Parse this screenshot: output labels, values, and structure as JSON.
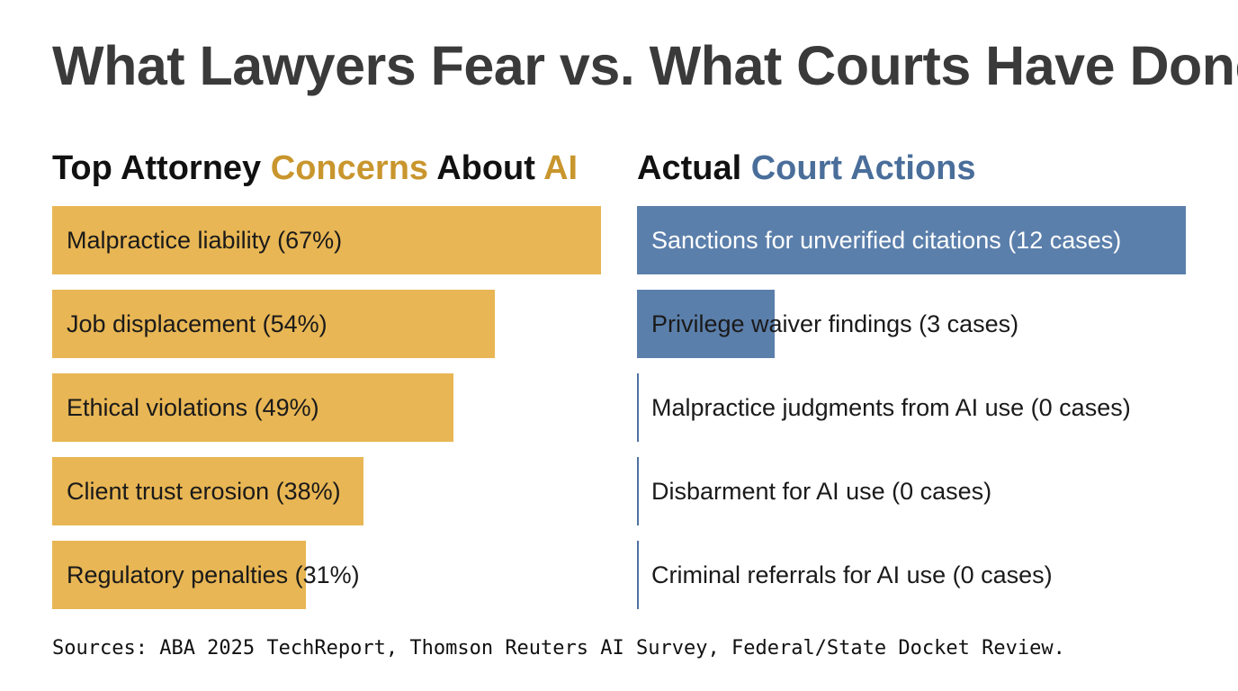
{
  "title": "What Lawyers Fear vs. What Courts Have Done",
  "left_panel": {
    "title_parts": [
      {
        "text": "Top Attorney ",
        "color": "#111111"
      },
      {
        "text": "Concerns",
        "color": "#c9962e"
      },
      {
        "text": " About ",
        "color": "#111111"
      },
      {
        "text": "AI",
        "color": "#c9962e"
      }
    ]
  },
  "right_panel": {
    "title_parts": [
      {
        "text": "Actual ",
        "color": "#111111"
      },
      {
        "text": "Court",
        "color": "#4a6e9a"
      },
      {
        "text": " ",
        "color": "#111111"
      },
      {
        "text": "Actions",
        "color": "#4a6e9a"
      }
    ]
  },
  "chart_data": [
    {
      "type": "bar",
      "orientation": "horizontal",
      "categories": [
        "Malpractice liability (67%)",
        "Job displacement (54%)",
        "Ethical violations (49%)",
        "Client trust erosion (38%)",
        "Regulatory penalties (31%)"
      ],
      "values": [
        67,
        54,
        49,
        38,
        31
      ],
      "unit": "%",
      "xlim": [
        0,
        67
      ],
      "color": "#e8b654"
    },
    {
      "type": "bar",
      "orientation": "horizontal",
      "categories": [
        "Sanctions for unverified citations (12 cases)",
        "Privilege waiver findings (3 cases)",
        "Malpractice judgments from AI use (0 cases)",
        "Disbarment for AI use (0 cases)",
        "Criminal referrals for AI use (0 cases)"
      ],
      "values": [
        12,
        3,
        0,
        0,
        0
      ],
      "unit": "cases",
      "xlim": [
        0,
        12
      ],
      "color": "#5b7fab"
    }
  ],
  "footer": "Sources: ABA 2025 TechReport, Thomson Reuters AI Survey, Federal/State Docket Review."
}
